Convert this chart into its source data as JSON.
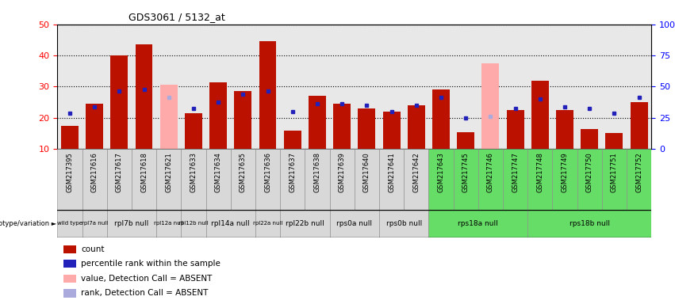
{
  "title": "GDS3061 / 5132_at",
  "samples": [
    "GSM217395",
    "GSM217616",
    "GSM217617",
    "GSM217618",
    "GSM217621",
    "GSM217633",
    "GSM217634",
    "GSM217635",
    "GSM217636",
    "GSM217637",
    "GSM217638",
    "GSM217639",
    "GSM217640",
    "GSM217641",
    "GSM217642",
    "GSM217643",
    "GSM217745",
    "GSM217746",
    "GSM217747",
    "GSM217748",
    "GSM217749",
    "GSM217750",
    "GSM217751",
    "GSM217752"
  ],
  "count": [
    17.5,
    24.5,
    40.0,
    43.5,
    null,
    21.5,
    31.5,
    28.5,
    44.5,
    16.0,
    27.0,
    24.5,
    23.0,
    22.0,
    24.0,
    29.0,
    15.5,
    null,
    22.5,
    32.0,
    22.5,
    16.5,
    15.0,
    25.0
  ],
  "absent_value": [
    null,
    null,
    null,
    null,
    30.5,
    null,
    null,
    null,
    null,
    null,
    null,
    null,
    null,
    null,
    null,
    null,
    null,
    37.5,
    null,
    null,
    null,
    null,
    null,
    null
  ],
  "percentile_rank": [
    21.5,
    23.5,
    28.5,
    29.0,
    null,
    23.0,
    25.0,
    27.5,
    28.5,
    22.0,
    24.5,
    24.5,
    24.0,
    22.0,
    24.0,
    26.5,
    20.0,
    null,
    23.0,
    26.0,
    23.5,
    23.0,
    21.5,
    26.5
  ],
  "absent_rank": [
    null,
    null,
    null,
    null,
    26.5,
    null,
    null,
    null,
    null,
    null,
    null,
    null,
    null,
    null,
    null,
    null,
    null,
    20.5,
    null,
    null,
    null,
    null,
    null,
    null
  ],
  "genotype_groups": [
    {
      "label": "wild type",
      "start": 0,
      "end": 1,
      "color": "#d8d8d8"
    },
    {
      "label": "rpl7a null",
      "start": 1,
      "end": 2,
      "color": "#d8d8d8"
    },
    {
      "label": "rpl7b null",
      "start": 2,
      "end": 4,
      "color": "#d8d8d8"
    },
    {
      "label": "rpl12a null",
      "start": 4,
      "end": 5,
      "color": "#d8d8d8"
    },
    {
      "label": "rpl12b null",
      "start": 5,
      "end": 6,
      "color": "#d8d8d8"
    },
    {
      "label": "rpl14a null",
      "start": 6,
      "end": 8,
      "color": "#d8d8d8"
    },
    {
      "label": "rpl22a null",
      "start": 8,
      "end": 9,
      "color": "#d8d8d8"
    },
    {
      "label": "rpl22b null",
      "start": 9,
      "end": 11,
      "color": "#d8d8d8"
    },
    {
      "label": "rps0a null",
      "start": 11,
      "end": 13,
      "color": "#d8d8d8"
    },
    {
      "label": "rps0b null",
      "start": 13,
      "end": 15,
      "color": "#d8d8d8"
    },
    {
      "label": "rps18a null",
      "start": 15,
      "end": 19,
      "color": "#66dd66"
    },
    {
      "label": "rps18b null",
      "start": 19,
      "end": 24,
      "color": "#66dd66"
    }
  ],
  "ylim_left": [
    10,
    50
  ],
  "ylim_right": [
    0,
    100
  ],
  "bar_color": "#bb1100",
  "absent_bar_color": "#ffaaaa",
  "rank_color": "#2222bb",
  "absent_rank_color": "#aaaadd",
  "plot_bg_color": "#e8e8e8",
  "xtick_bg_color": "#d0d0d0",
  "fig_bg_color": "#ffffff"
}
